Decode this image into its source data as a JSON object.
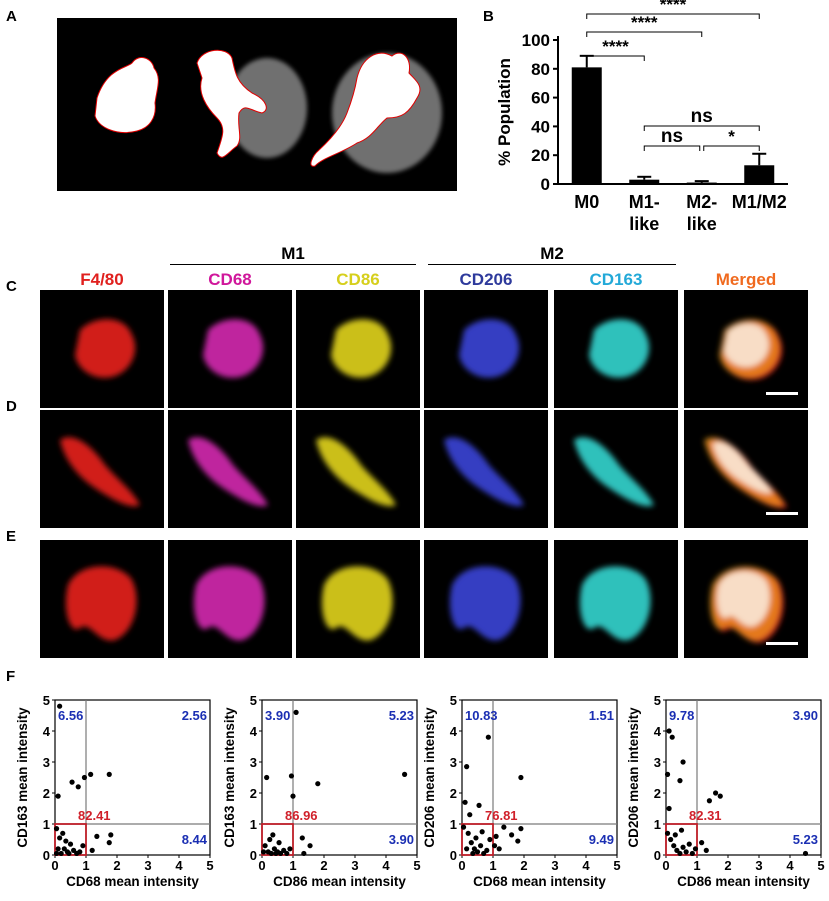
{
  "panels": {
    "A": "A",
    "B": "B",
    "C": "C",
    "D": "D",
    "E": "E",
    "F": "F"
  },
  "groups": {
    "m1": "M1",
    "m2": "M2"
  },
  "channels": [
    {
      "label": "F4/80",
      "color": "#e0201e"
    },
    {
      "label": "CD68",
      "color": "#d0179b"
    },
    {
      "label": "CD86",
      "color": "#d6cf1c"
    },
    {
      "label": "CD206",
      "color": "#2e3a9c"
    },
    {
      "label": "CD163",
      "color": "#23a9d8"
    },
    {
      "label": "Merged",
      "color": "#f06a1f"
    }
  ],
  "chart_data": [
    {
      "type": "bar",
      "panel": "B",
      "ylabel": "% Population",
      "categories": [
        "M0",
        "M1-\nlike",
        "M2-\nlike",
        "M1/M2"
      ],
      "category_lines": [
        [
          "M0"
        ],
        [
          "M1-",
          "like"
        ],
        [
          "M2-",
          "like"
        ],
        [
          "M1/M2"
        ]
      ],
      "values": [
        81,
        3,
        1,
        13
      ],
      "errors": [
        8,
        2,
        1,
        8
      ],
      "ylim": [
        0,
        100
      ],
      "yticks": [
        0,
        20,
        40,
        60,
        80,
        100
      ],
      "significance": [
        {
          "from": 0,
          "to": 1,
          "label": "****"
        },
        {
          "from": 0,
          "to": 2,
          "label": "****"
        },
        {
          "from": 0,
          "to": 3,
          "label": "****"
        },
        {
          "from": 1,
          "to": 2,
          "label": "ns"
        },
        {
          "from": 1,
          "to": 3,
          "label": "ns"
        },
        {
          "from": 2,
          "to": 3,
          "label": "*"
        }
      ]
    },
    {
      "type": "scatter",
      "panel": "F",
      "xlabel": "CD68 mean intensity",
      "ylabel": "CD163 mean intensity",
      "xlim": [
        0,
        5
      ],
      "ylim": [
        0,
        5
      ],
      "ticks": [
        0,
        1,
        2,
        3,
        4,
        5
      ],
      "quadrants": {
        "ul": "6.56",
        "ur": "2.56",
        "ll": "82.41",
        "lr": "8.44"
      },
      "points": [
        [
          0.15,
          4.8
        ],
        [
          0.1,
          1.9
        ],
        [
          0.55,
          2.35
        ],
        [
          0.75,
          2.2
        ],
        [
          0.95,
          2.5
        ],
        [
          1.15,
          2.6
        ],
        [
          1.75,
          2.6
        ],
        [
          0.05,
          0.85
        ],
        [
          0.15,
          0.55
        ],
        [
          0.3,
          0.2
        ],
        [
          0.4,
          0.1
        ],
        [
          0.5,
          0.35
        ],
        [
          0.6,
          0.15
        ],
        [
          0.7,
          0.05
        ],
        [
          0.8,
          0.1
        ],
        [
          0.9,
          0.3
        ],
        [
          0.2,
          0.05
        ],
        [
          0.35,
          0.45
        ],
        [
          0.45,
          0.05
        ],
        [
          0.1,
          0.2
        ],
        [
          1.2,
          0.15
        ],
        [
          1.35,
          0.6
        ],
        [
          1.75,
          0.4
        ],
        [
          1.8,
          0.65
        ],
        [
          0.25,
          0.7
        ],
        [
          0.05,
          0.05
        ]
      ]
    },
    {
      "type": "scatter",
      "panel": "F",
      "xlabel": "CD86 mean intensity",
      "ylabel": "CD163 mean intensity",
      "xlim": [
        0,
        5
      ],
      "ylim": [
        0,
        5
      ],
      "ticks": [
        0,
        1,
        2,
        3,
        4,
        5
      ],
      "quadrants": {
        "ul": "3.90",
        "ur": "5.23",
        "ll": "86.96",
        "lr": "3.90"
      },
      "points": [
        [
          0.15,
          2.5
        ],
        [
          0.95,
          2.55
        ],
        [
          1.0,
          1.9
        ],
        [
          1.1,
          4.6
        ],
        [
          1.8,
          2.3
        ],
        [
          4.6,
          2.6
        ],
        [
          0.1,
          0.3
        ],
        [
          0.2,
          0.1
        ],
        [
          0.3,
          0.05
        ],
        [
          0.4,
          0.2
        ],
        [
          0.5,
          0.1
        ],
        [
          0.6,
          0.05
        ],
        [
          0.7,
          0.15
        ],
        [
          0.8,
          0.05
        ],
        [
          0.25,
          0.5
        ],
        [
          0.35,
          0.65
        ],
        [
          0.05,
          0.1
        ],
        [
          0.55,
          0.4
        ],
        [
          0.9,
          0.2
        ],
        [
          1.35,
          0.05
        ],
        [
          1.55,
          0.3
        ],
        [
          1.3,
          0.55
        ],
        [
          0.45,
          0.05
        ]
      ]
    },
    {
      "type": "scatter",
      "panel": "F",
      "xlabel": "CD68 mean intensity",
      "ylabel": "CD206 mean intensity",
      "xlim": [
        0,
        5
      ],
      "ylim": [
        0,
        5
      ],
      "ticks": [
        0,
        1,
        2,
        3,
        4,
        5
      ],
      "quadrants": {
        "ul": "10.83",
        "ur": "1.51",
        "ll": "76.81",
        "lr": "9.49"
      },
      "points": [
        [
          0.85,
          3.8
        ],
        [
          0.15,
          2.85
        ],
        [
          0.1,
          1.7
        ],
        [
          0.25,
          1.3
        ],
        [
          0.55,
          1.6
        ],
        [
          1.9,
          2.5
        ],
        [
          0.05,
          0.9
        ],
        [
          0.2,
          0.7
        ],
        [
          0.3,
          0.4
        ],
        [
          0.4,
          0.2
        ],
        [
          0.5,
          0.1
        ],
        [
          0.6,
          0.3
        ],
        [
          0.7,
          0.05
        ],
        [
          0.8,
          0.15
        ],
        [
          0.9,
          0.5
        ],
        [
          0.15,
          0.2
        ],
        [
          0.35,
          0.05
        ],
        [
          0.45,
          0.55
        ],
        [
          1.1,
          0.6
        ],
        [
          1.2,
          0.2
        ],
        [
          1.35,
          0.9
        ],
        [
          1.6,
          0.65
        ],
        [
          1.8,
          0.45
        ],
        [
          1.9,
          0.85
        ],
        [
          1.05,
          0.3
        ],
        [
          0.65,
          0.75
        ]
      ]
    },
    {
      "type": "scatter",
      "panel": "F",
      "xlabel": "CD86 mean intensity",
      "ylabel": "CD206 mean intensity",
      "xlim": [
        0,
        5
      ],
      "ylim": [
        0,
        5
      ],
      "ticks": [
        0,
        1,
        2,
        3,
        4,
        5
      ],
      "quadrants": {
        "ul": "9.78",
        "ur": "3.90",
        "ll": "82.31",
        "lr": "5.23"
      },
      "points": [
        [
          0.1,
          4.0
        ],
        [
          0.2,
          3.8
        ],
        [
          0.05,
          2.6
        ],
        [
          0.45,
          2.4
        ],
        [
          0.55,
          3.0
        ],
        [
          0.1,
          1.5
        ],
        [
          1.4,
          1.75
        ],
        [
          1.6,
          2.0
        ],
        [
          1.75,
          1.9
        ],
        [
          0.05,
          0.7
        ],
        [
          0.15,
          0.5
        ],
        [
          0.25,
          0.3
        ],
        [
          0.35,
          0.15
        ],
        [
          0.45,
          0.05
        ],
        [
          0.55,
          0.25
        ],
        [
          0.65,
          0.1
        ],
        [
          0.75,
          0.35
        ],
        [
          0.85,
          0.05
        ],
        [
          0.95,
          0.2
        ],
        [
          0.3,
          0.65
        ],
        [
          1.15,
          0.4
        ],
        [
          1.3,
          0.15
        ],
        [
          4.5,
          0.05
        ],
        [
          0.5,
          0.8
        ]
      ]
    }
  ]
}
